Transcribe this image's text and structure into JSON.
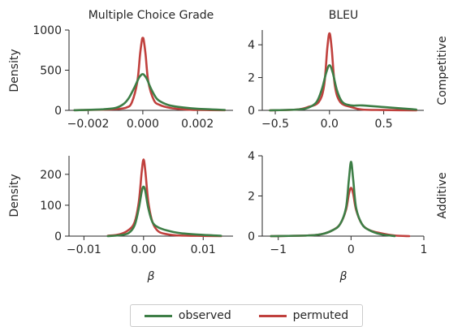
{
  "chart_data": {
    "type": "line",
    "column_titles": [
      "Multiple Choice Grade",
      "BLEU"
    ],
    "row_titles": [
      "Competitive",
      "Additive"
    ],
    "ylabel": "Density",
    "xlabel": "β",
    "grid": false,
    "legend_placement": "bottom-center",
    "legend": [
      {
        "name": "observed",
        "color": "#3d7e46"
      },
      {
        "name": "permuted",
        "color": "#c0403d"
      }
    ],
    "panels": [
      {
        "id": "competitive-mcg",
        "xlim": [
          -0.0027,
          0.0033
        ],
        "ylim": [
          0,
          1000
        ],
        "xticks": [
          -0.002,
          0.0,
          0.002
        ],
        "xtick_labels": [
          "−0.002",
          "0.000",
          "0.002"
        ],
        "yticks": [
          0,
          500,
          1000
        ],
        "ytick_labels": [
          "0",
          "500",
          "1000"
        ],
        "series": [
          {
            "name": "observed",
            "x": [
              -0.0025,
              -0.0015,
              -0.001,
              -0.0007,
              -0.0005,
              -0.0003,
              -0.00015,
              -5e-05,
              0.0,
              5e-05,
              0.00015,
              0.0003,
              0.0005,
              0.0007,
              0.001,
              0.0015,
              0.002,
              0.003
            ],
            "y": [
              2,
              12,
              30,
              80,
              160,
              290,
              400,
              445,
              450,
              440,
              390,
              270,
              150,
              100,
              60,
              35,
              20,
              5
            ]
          },
          {
            "name": "permuted",
            "x": [
              -0.0025,
              -0.0015,
              -0.001,
              -0.0006,
              -0.0004,
              -0.0002,
              -0.0001,
              -3e-05,
              0.0,
              3e-05,
              0.0001,
              0.0002,
              0.0004,
              0.0006,
              0.001,
              0.0015,
              0.002,
              0.003
            ],
            "y": [
              2,
              8,
              15,
              35,
              100,
              360,
              700,
              880,
              900,
              880,
              700,
              360,
              130,
              70,
              30,
              12,
              5,
              2
            ]
          }
        ]
      },
      {
        "id": "competitive-bleu",
        "xlim": [
          -0.62,
          0.87
        ],
        "ylim": [
          0,
          4.9
        ],
        "xticks": [
          -0.5,
          0.0,
          0.5
        ],
        "xtick_labels": [
          "−0.5",
          "0.0",
          "0.5"
        ],
        "yticks": [
          0,
          2,
          4
        ],
        "ytick_labels": [
          "0",
          "2",
          "4"
        ],
        "series": [
          {
            "name": "observed",
            "x": [
              -0.55,
              -0.3,
              -0.2,
              -0.12,
              -0.07,
              -0.03,
              0.0,
              0.03,
              0.07,
              0.12,
              0.2,
              0.3,
              0.5,
              0.8
            ],
            "y": [
              0.0,
              0.05,
              0.15,
              0.5,
              1.3,
              2.3,
              2.75,
              2.3,
              1.2,
              0.5,
              0.3,
              0.3,
              0.2,
              0.05
            ]
          },
          {
            "name": "permuted",
            "x": [
              -0.55,
              -0.3,
              -0.2,
              -0.1,
              -0.05,
              -0.02,
              0.0,
              0.02,
              0.05,
              0.1,
              0.2,
              0.3,
              0.5,
              0.8
            ],
            "y": [
              0.0,
              0.05,
              0.2,
              0.5,
              1.5,
              3.8,
              4.7,
              3.8,
              1.5,
              0.5,
              0.2,
              0.05,
              0.02,
              0.0
            ]
          }
        ]
      },
      {
        "id": "additive-mcg",
        "xlim": [
          -0.0125,
          0.015
        ],
        "ylim": [
          0,
          260
        ],
        "xticks": [
          -0.01,
          0.0,
          0.01
        ],
        "xtick_labels": [
          "−0.01",
          "0.00",
          "0.01"
        ],
        "yticks": [
          0,
          100,
          200
        ],
        "ytick_labels": [
          "0",
          "100",
          "200"
        ],
        "series": [
          {
            "name": "observed",
            "x": [
              -0.006,
              -0.004,
              -0.0025,
              -0.0015,
              -0.0008,
              -0.0003,
              0.0,
              0.0003,
              0.0008,
              0.0015,
              0.0025,
              0.004,
              0.006,
              0.009,
              0.013
            ],
            "y": [
              0,
              3,
              10,
              35,
              90,
              145,
              160,
              145,
              90,
              45,
              28,
              18,
              10,
              5,
              1
            ]
          },
          {
            "name": "permuted",
            "x": [
              -0.006,
              -0.004,
              -0.0025,
              -0.0015,
              -0.0008,
              -0.0003,
              0.0,
              0.0003,
              0.0008,
              0.0015,
              0.0025,
              0.004,
              0.006,
              0.009,
              0.013
            ],
            "y": [
              1,
              6,
              20,
              45,
              110,
              210,
              248,
              210,
              110,
              45,
              15,
              6,
              2,
              1,
              0
            ]
          }
        ]
      },
      {
        "id": "additive-bleu",
        "xlim": [
          -1.22,
          1.0
        ],
        "ylim": [
          0,
          4.0
        ],
        "xticks": [
          -1,
          0,
          1
        ],
        "xtick_labels": [
          "−1",
          "0",
          "1"
        ],
        "yticks": [
          0,
          2,
          4
        ],
        "ytick_labels": [
          "0",
          "2",
          "4"
        ],
        "series": [
          {
            "name": "observed",
            "x": [
              -1.1,
              -0.6,
              -0.4,
              -0.25,
              -0.15,
              -0.07,
              -0.03,
              0.0,
              0.03,
              0.07,
              0.15,
              0.25,
              0.4,
              0.6
            ],
            "y": [
              0.0,
              0.03,
              0.1,
              0.3,
              0.6,
              1.4,
              2.8,
              3.7,
              2.8,
              1.4,
              0.6,
              0.3,
              0.1,
              0.0
            ]
          },
          {
            "name": "permuted",
            "x": [
              -1.1,
              -0.6,
              -0.4,
              -0.25,
              -0.15,
              -0.07,
              -0.03,
              0.0,
              0.03,
              0.07,
              0.15,
              0.25,
              0.4,
              0.6,
              0.8
            ],
            "y": [
              0.0,
              0.03,
              0.1,
              0.3,
              0.6,
              1.3,
              2.1,
              2.4,
              2.1,
              1.3,
              0.6,
              0.3,
              0.15,
              0.03,
              0.0
            ]
          }
        ]
      }
    ]
  }
}
